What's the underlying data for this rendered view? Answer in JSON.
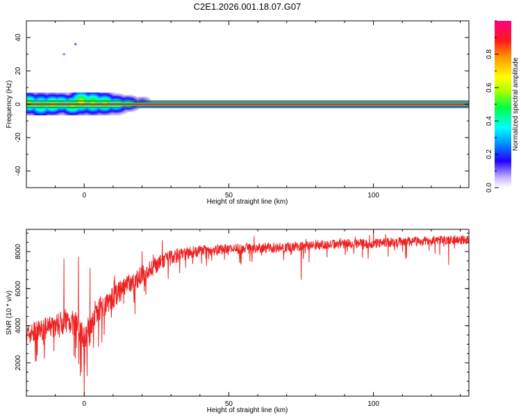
{
  "figure": {
    "title": "C2E1.2026.001.18.07.G07"
  },
  "colors": {
    "snr_line": "#ee2222",
    "axis": "#000000",
    "background": "#ffffff",
    "carrier_band": "#1a8a3a",
    "carrier_core": "#dd1f3a"
  },
  "chart_data": [
    {
      "type": "heatmap",
      "name": "spectrogram",
      "xlabel": "Height of straight line (km)",
      "ylabel": "Frequency (Hz)",
      "xlim": [
        -20,
        133
      ],
      "ylim": [
        -50,
        50
      ],
      "xticks": [
        0,
        50,
        100
      ],
      "xtick_labels": [
        "0",
        "50",
        "100"
      ],
      "yticks": [
        -40,
        -20,
        0,
        20,
        40
      ],
      "ytick_labels": [
        "-40",
        "-20",
        "0",
        "20",
        "40"
      ],
      "carrier_frequency_hz": 0,
      "carrier_halfwidth_hz": 2,
      "carrier_amplitude": 1.0,
      "colorbar": {
        "label": "Normalized spectral amplitude",
        "range": [
          0,
          1
        ],
        "ticks": [
          0.0,
          0.2,
          0.4,
          0.6,
          0.8
        ],
        "tick_labels": [
          "0.0",
          "0.2",
          "0.4",
          "0.6",
          "0.8"
        ]
      },
      "blobs": [
        {
          "x": -19,
          "f": 0.5,
          "dx": 2.2,
          "df": 3.5,
          "amp": 0.55
        },
        {
          "x": -15,
          "f": -0.5,
          "dx": 2.5,
          "df": 4,
          "amp": 0.5
        },
        {
          "x": -11,
          "f": 0,
          "dx": 2.5,
          "df": 3.5,
          "amp": 0.55
        },
        {
          "x": -8,
          "f": 0.5,
          "dx": 2.5,
          "df": 3.2,
          "amp": 0.5
        },
        {
          "x": -4,
          "f": -0.5,
          "dx": 2.5,
          "df": 3.5,
          "amp": 0.55
        },
        {
          "x": -1,
          "f": 1.5,
          "dx": 2.5,
          "df": 4,
          "amp": 0.6
        },
        {
          "x": 3,
          "f": 1,
          "dx": 2.5,
          "df": 4,
          "amp": 0.55
        },
        {
          "x": 7,
          "f": 0.5,
          "dx": 2.5,
          "df": 3.5,
          "amp": 0.55
        },
        {
          "x": 11,
          "f": 0,
          "dx": 2.5,
          "df": 3,
          "amp": 0.45
        },
        {
          "x": 15,
          "f": 0.5,
          "dx": 2.5,
          "df": 2.5,
          "amp": 0.35
        },
        {
          "x": 20,
          "f": 1.5,
          "dx": 2,
          "df": 2,
          "amp": 0.15
        }
      ],
      "specks": [
        {
          "x": -3,
          "f": 36,
          "amp": 0.05
        },
        {
          "x": -7,
          "f": 30,
          "amp": 0.04
        }
      ]
    },
    {
      "type": "line",
      "name": "snr",
      "xlabel": "Height of straight line (km)",
      "ylabel": "SNR (10 * v/v)",
      "xlim": [
        -20,
        133
      ],
      "ylim": [
        200,
        9200
      ],
      "xticks": [
        0,
        50,
        100
      ],
      "xtick_labels": [
        "0",
        "50",
        "100"
      ],
      "yticks": [
        2000,
        4000,
        6000,
        8000
      ],
      "ytick_labels": [
        "2000",
        "4000",
        "6000",
        "8000"
      ],
      "noise_seed": 7,
      "trend": [
        {
          "x": -20,
          "y": 3500
        },
        {
          "x": -12,
          "y": 3900
        },
        {
          "x": -6,
          "y": 4300
        },
        {
          "x": -2,
          "y": 4000
        },
        {
          "x": 0,
          "y": 3300
        },
        {
          "x": 4,
          "y": 4800
        },
        {
          "x": 8,
          "y": 5200
        },
        {
          "x": 12,
          "y": 5800
        },
        {
          "x": 18,
          "y": 6500
        },
        {
          "x": 25,
          "y": 7300
        },
        {
          "x": 32,
          "y": 7800
        },
        {
          "x": 40,
          "y": 8050
        },
        {
          "x": 55,
          "y": 8150
        },
        {
          "x": 70,
          "y": 8250
        },
        {
          "x": 85,
          "y": 8400
        },
        {
          "x": 100,
          "y": 8450
        },
        {
          "x": 115,
          "y": 8550
        },
        {
          "x": 133,
          "y": 8650
        }
      ],
      "noise_envelope": [
        {
          "x": -20,
          "y": 550
        },
        {
          "x": 0,
          "y": 700
        },
        {
          "x": 20,
          "y": 500
        },
        {
          "x": 40,
          "y": 300
        },
        {
          "x": 80,
          "y": 250
        },
        {
          "x": 133,
          "y": 250
        }
      ],
      "events": [
        {
          "x": -7,
          "y": 7600
        },
        {
          "x": -2,
          "y": 7700
        },
        {
          "x": 0,
          "y": 300
        },
        {
          "x": -1,
          "y": 1500
        },
        {
          "x": 1,
          "y": 1300
        },
        {
          "x": 2,
          "y": 7100
        },
        {
          "x": 20,
          "y": 8000
        },
        {
          "x": 27,
          "y": 8600
        },
        {
          "x": 75,
          "y": 6500
        },
        {
          "x": 100,
          "y": 9200
        },
        {
          "x": 126,
          "y": 7300
        }
      ]
    }
  ]
}
